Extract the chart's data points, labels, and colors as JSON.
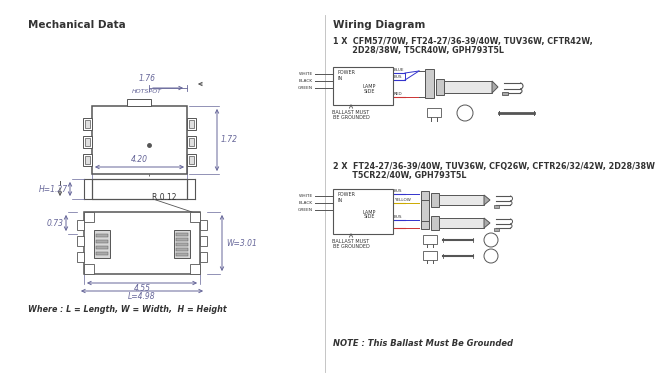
{
  "bg_color": "#ffffff",
  "left_title": "Mechanical Data",
  "right_title": "Wiring Diagram",
  "dim_color": "#666699",
  "line_color": "#555555",
  "text_color": "#333333",
  "wiring_1x_title": "1 X  CFM57/70W, FT24-27/36-39/40W, TUV36W, CFTR42W,",
  "wiring_1x_title2": "       2D28/38W, T5CR40W, GPH793T5L",
  "wiring_2x_title": "2 X  FT24-27/36-39/40W, TUV36W, CFQ26W, CFTR26/32/42W, 2D28/38W",
  "wiring_2x_title2": "       T5CR22/40W, GPH793T5L",
  "note": "NOTE : This Ballast Must Be Grounded",
  "footnote": "Where : L = Length, W = Width,  H = Height"
}
